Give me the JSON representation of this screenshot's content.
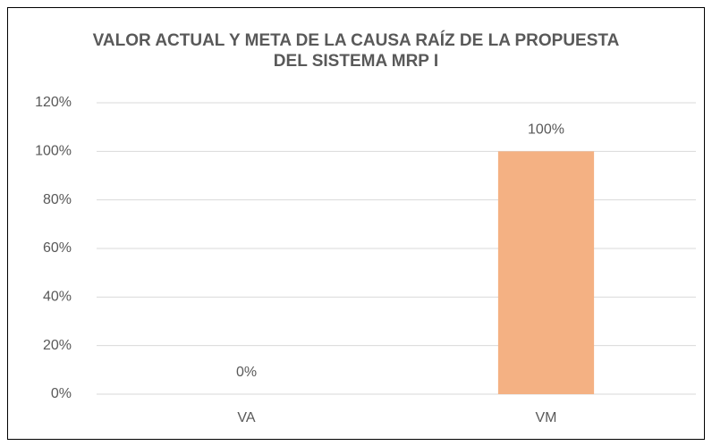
{
  "chart_data": {
    "type": "bar",
    "title": "VALOR ACTUAL Y META DE LA CAUSA RAÍZ DE LA PROPUESTA DEL SISTEMA MRP I",
    "categories": [
      "VA",
      "VM"
    ],
    "values": [
      0,
      100
    ],
    "value_labels": [
      "0%",
      "100%"
    ],
    "color": "#f4b183",
    "ylim": [
      0,
      120
    ],
    "yticks": [
      {
        "value": 0,
        "label": "0%"
      },
      {
        "value": 20,
        "label": "20%"
      },
      {
        "value": 40,
        "label": "40%"
      },
      {
        "value": 60,
        "label": "60%"
      },
      {
        "value": 80,
        "label": "80%"
      },
      {
        "value": 100,
        "label": "100%"
      },
      {
        "value": 120,
        "label": "120%"
      }
    ],
    "grid": true
  }
}
